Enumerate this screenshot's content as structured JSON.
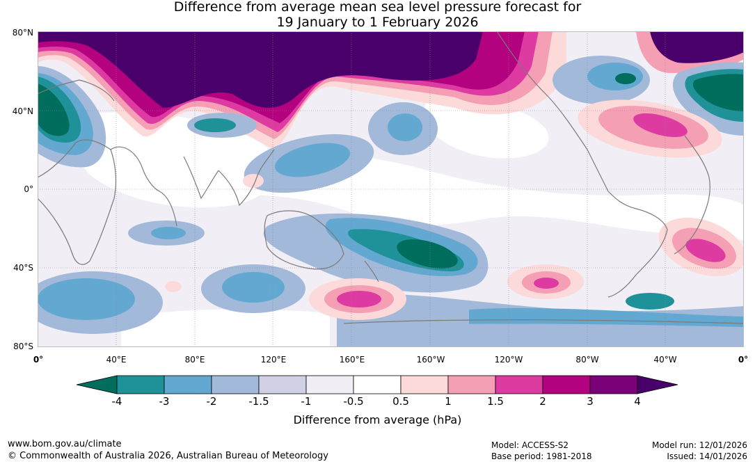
{
  "title": {
    "line1": "Difference from average mean sea level pressure forecast for",
    "line2": "19 January to 1 February 2026"
  },
  "map": {
    "lat_labels": [
      "80°N",
      "40°N",
      "0°",
      "40°S",
      "80°S"
    ],
    "lon_labels": [
      "0°",
      "40°E",
      "80°E",
      "120°E",
      "160°E",
      "160°W",
      "120°W",
      "80°W",
      "40°W",
      "0°"
    ]
  },
  "colorbar": {
    "ticks": [
      "-4",
      "-3",
      "-2",
      "-1.5",
      "-1",
      "-0.5",
      "0.5",
      "1",
      "1.5",
      "2",
      "3",
      "4"
    ],
    "colors": [
      "#016d5c",
      "#1f9199",
      "#63a8d0",
      "#a3b9d9",
      "#cfd0e4",
      "#f1eef5",
      "#ffffff",
      "#fddada",
      "#f59fb4",
      "#dd3ba1",
      "#b3017f",
      "#7a0177",
      "#49006a"
    ],
    "label": "Difference from average (hPa)"
  },
  "footer": {
    "website": "www.bom.gov.au/climate",
    "copyright": "© Commonwealth of Australia 2026, Australian Bureau of Meteorology",
    "model": "Model: ACCESS-S2",
    "base_period": "Base period: 1981-2018",
    "model_run": "Model run: 12/01/2026",
    "issued": "Issued: 14/01/2026"
  }
}
